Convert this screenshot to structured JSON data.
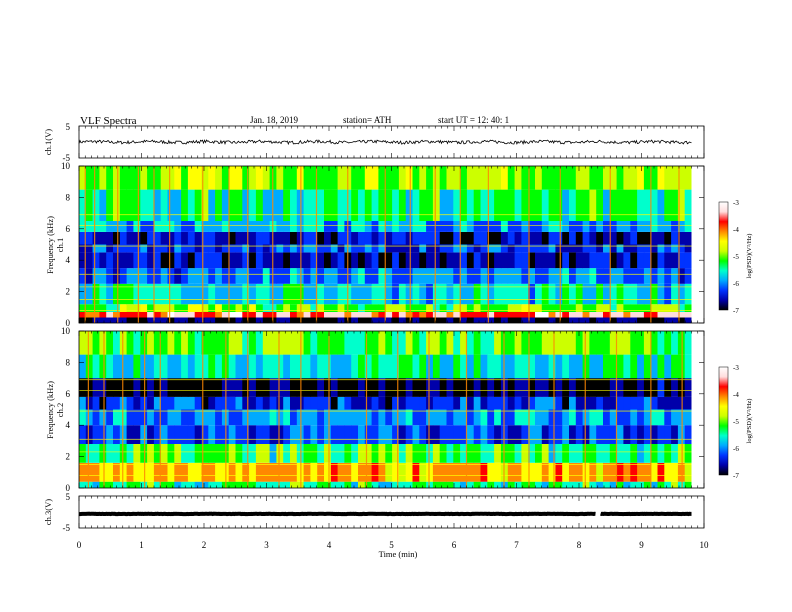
{
  "header": {
    "title": "VLF  Spectra",
    "date": "Jan. 18, 2019",
    "station": "station= ATH",
    "start": "start  UT  =   12: 40: 1"
  },
  "chart_data": [
    {
      "type": "line",
      "name": "ch1-waveform",
      "ylabel": "ch.1(V)",
      "ylim": [
        -5,
        5
      ],
      "yticks": [
        "5",
        "-5"
      ],
      "xlim": [
        0,
        10
      ],
      "xticks": [
        "0",
        "1",
        "2",
        "3",
        "4",
        "5",
        "6",
        "7",
        "8",
        "9",
        "10"
      ],
      "xlabel": "",
      "y_level": 0,
      "y_noise": 0.5,
      "x_end": 9.8,
      "color": "#000000"
    },
    {
      "type": "heatmap",
      "name": "ch1-spectrogram",
      "ylabel": "Frequency  (kHz)",
      "ylabel2": "ch.1",
      "ylim": [
        0,
        10
      ],
      "yticks": [
        "0",
        "2",
        "4",
        "6",
        "8",
        "10"
      ],
      "xlim": [
        0,
        10
      ],
      "x_end": 9.8,
      "colorbar": {
        "label": "log(PSD)(V²/Hz)",
        "range": [
          -7,
          -3
        ],
        "ticks": [
          "-3",
          "-4",
          "-5",
          "-6",
          "-7"
        ],
        "colors": [
          "#000000",
          "#0000aa",
          "#0033ff",
          "#00aaff",
          "#00ffcc",
          "#00ff00",
          "#ccff00",
          "#ffff00",
          "#ff8800",
          "#ff0000",
          "#ffdddd",
          "#ffffff"
        ]
      },
      "bands_khz": [
        {
          "from": 0.0,
          "to": 0.35,
          "level": -6.9
        },
        {
          "from": 0.35,
          "to": 0.7,
          "level": -3.6
        },
        {
          "from": 0.7,
          "to": 1.2,
          "level": -5.0
        },
        {
          "from": 1.2,
          "to": 2.5,
          "level": -5.7
        },
        {
          "from": 2.5,
          "to": 3.5,
          "level": -6.1
        },
        {
          "from": 3.5,
          "to": 4.5,
          "level": -6.7
        },
        {
          "from": 4.5,
          "to": 5.0,
          "level": -6.3
        },
        {
          "from": 5.0,
          "to": 5.8,
          "level": -6.6
        },
        {
          "from": 5.8,
          "to": 6.5,
          "level": -5.9
        },
        {
          "from": 6.5,
          "to": 8.5,
          "level": -5.4
        },
        {
          "from": 8.5,
          "to": 10.0,
          "level": -4.9
        }
      ],
      "spikes_min": [
        0.1,
        0.25,
        0.62,
        0.95,
        1.2,
        1.45,
        1.98,
        2.4,
        2.7,
        3.1,
        3.55,
        3.8,
        4.3,
        4.9,
        5.3,
        5.7,
        6.1,
        6.55,
        7.2,
        7.7,
        8.5,
        9.15,
        9.6
      ]
    },
    {
      "type": "heatmap",
      "name": "ch2-spectrogram",
      "ylabel": "Frequency  (kHz)",
      "ylabel2": "ch.2",
      "ylim": [
        0,
        10
      ],
      "yticks": [
        "0",
        "2",
        "4",
        "6",
        "8",
        "10"
      ],
      "xlim": [
        0,
        10
      ],
      "x_end": 9.8,
      "colorbar": {
        "label": "log(PSD)(V²/Hz)",
        "range": [
          -7,
          -3
        ],
        "ticks": [
          "-3",
          "-4",
          "-5",
          "-6",
          "-7"
        ],
        "colors": [
          "#000000",
          "#0000aa",
          "#0033ff",
          "#00aaff",
          "#00ffcc",
          "#00ff00",
          "#ccff00",
          "#ffff00",
          "#ff8800",
          "#ff0000",
          "#ffdddd",
          "#ffffff"
        ]
      },
      "bands_khz": [
        {
          "from": 0.0,
          "to": 0.4,
          "level": -5.4
        },
        {
          "from": 0.4,
          "to": 1.6,
          "level": -4.3
        },
        {
          "from": 1.6,
          "to": 2.8,
          "level": -5.3
        },
        {
          "from": 2.8,
          "to": 4.0,
          "level": -6.2
        },
        {
          "from": 4.0,
          "to": 5.0,
          "level": -6.0
        },
        {
          "from": 5.0,
          "to": 5.8,
          "level": -6.4
        },
        {
          "from": 5.8,
          "to": 7.0,
          "level": -6.9
        },
        {
          "from": 7.0,
          "to": 8.5,
          "level": -5.6
        },
        {
          "from": 8.5,
          "to": 10.0,
          "level": -5.1
        }
      ],
      "spikes_min": [
        0.15,
        0.4,
        0.7,
        1.05,
        1.3,
        1.98,
        2.35,
        2.7,
        3.2,
        3.55,
        4.0,
        4.6,
        5.1,
        5.6,
        6.2,
        6.8,
        7.2,
        7.6,
        8.1,
        8.6,
        9.15,
        9.65
      ]
    },
    {
      "type": "line",
      "name": "ch3-waveform",
      "ylabel": "ch.3(V)",
      "ylim": [
        -5,
        5
      ],
      "yticks": [
        "5",
        "-5"
      ],
      "xlim": [
        0,
        10
      ],
      "xticks": [
        "0",
        "1",
        "2",
        "3",
        "4",
        "5",
        "6",
        "7",
        "8",
        "9",
        "10"
      ],
      "xlabel": "Time  (min)",
      "y_level": -0.6,
      "y_noise": 0.05,
      "x_end": 9.8,
      "gap_min": 8.3,
      "color": "#000000"
    }
  ]
}
